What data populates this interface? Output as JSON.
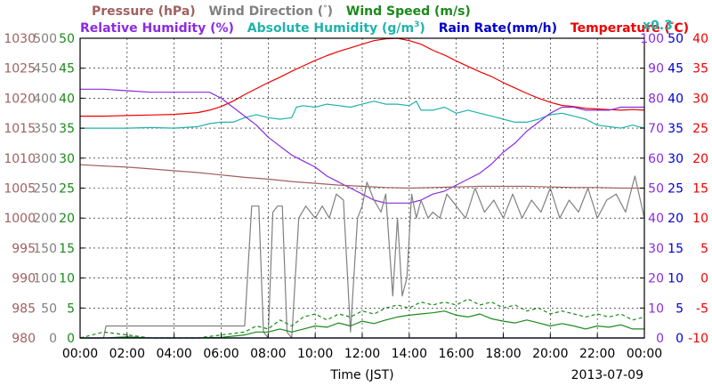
{
  "chart_data": {
    "type": "line",
    "date_label": "2013-07-09",
    "xlabel": "Time (JST)",
    "x_ticks": [
      "00:00",
      "02:00",
      "04:00",
      "06:00",
      "08:00",
      "10:00",
      "12:00",
      "14:00",
      "16:00",
      "18:00",
      "20:00",
      "22:00",
      "00:00"
    ],
    "legend": {
      "row1": [
        {
          "name": "Pressure (hPa)",
          "color": "#a06060"
        },
        {
          "name": "Wind Direction (",
          "color": "#808080",
          "degree": "°",
          "close": ")"
        },
        {
          "name": "Wind Speed (m/s)",
          "color": "#1a8a1a"
        }
      ],
      "row2": [
        {
          "name": "Relative Humidity (%)",
          "color": "#8a2be2"
        },
        {
          "name": "Absolute Humidity (g/m",
          "color": "#20b2aa",
          "sup": "3",
          "close": ")"
        },
        {
          "name": "Rain Rate(mm/h)",
          "color": "#0000cc"
        },
        {
          "name": "Temperature (",
          "color": "#ee0000",
          "degree": "°",
          "close": "C)"
        },
        {
          "name": "x0.3",
          "color": "#20b2aa"
        }
      ]
    },
    "axes": {
      "pressure": {
        "color": "#a06060",
        "labels": [
          "980",
          "985",
          "990",
          "995",
          "1000",
          "1005",
          "1010",
          "1015",
          "1020",
          "1025",
          "1030"
        ],
        "range": [
          980,
          1030
        ]
      },
      "wind_direction": {
        "color": "#808080",
        "labels": [
          "0",
          "50",
          "100",
          "150",
          "200",
          "250",
          "300",
          "350",
          "400",
          "450",
          "500"
        ],
        "range": [
          0,
          500
        ]
      },
      "wind_speed": {
        "color": "#1a8a1a",
        "labels": [
          "0",
          "5",
          "10",
          "15",
          "20",
          "25",
          "30",
          "35",
          "40",
          "45",
          "50"
        ],
        "range": [
          0,
          50
        ]
      },
      "humidity": {
        "color": "#8a2be2",
        "labels": [
          "0",
          "10",
          "20",
          "30",
          "40",
          "50",
          "60",
          "70",
          "80",
          "90",
          "100"
        ],
        "range": [
          0,
          100
        ]
      },
      "rain_rate": {
        "color": "#0000cc",
        "labels": [
          "0",
          "5",
          "10",
          "15",
          "20",
          "25",
          "30",
          "35",
          "40",
          "45",
          "50"
        ],
        "range": [
          0,
          50
        ]
      },
      "temperature": {
        "color": "#ee0000",
        "labels": [
          "-10",
          "-5",
          "0",
          "5",
          "10",
          "15",
          "20",
          "25",
          "30",
          "35",
          "40"
        ],
        "range": [
          -10,
          40
        ]
      }
    },
    "grid": true,
    "series": [
      {
        "color": "#ee0000",
        "axis": "temperature",
        "x": [
          0,
          1,
          2,
          3,
          4,
          5,
          5.5,
          6,
          6.5,
          7,
          7.5,
          8,
          8.5,
          9,
          9.5,
          10,
          10.5,
          11,
          11.5,
          12,
          12.5,
          13,
          13.5,
          14,
          14.5,
          15,
          15.5,
          16,
          16.5,
          17,
          17.5,
          18,
          18.5,
          19,
          19.5,
          20,
          20.5,
          21,
          21.5,
          22,
          22.5,
          23,
          23.5,
          24
        ],
        "y": [
          27,
          27,
          27.1,
          27.2,
          27.3,
          27.6,
          28,
          28.6,
          29.5,
          30.6,
          31.6,
          32.6,
          33.5,
          34.5,
          35.4,
          36.3,
          37.1,
          37.8,
          38.4,
          39,
          39.6,
          39.9,
          40,
          39.6,
          39,
          38,
          37.2,
          36.2,
          35.3,
          34.4,
          33.6,
          32.6,
          31.7,
          30.8,
          30,
          29.3,
          28.8,
          28.6,
          28.3,
          28.2,
          28.1,
          28,
          28.1,
          28
        ]
      },
      {
        "color": "#20b2aa",
        "axis": "humidity",
        "x": [
          0,
          1,
          2,
          3,
          4,
          5,
          5.5,
          6,
          6.5,
          7,
          7.5,
          8,
          8.5,
          9,
          9.2,
          9.5,
          10,
          10.5,
          11,
          11.5,
          12,
          12.5,
          13,
          13.3,
          13.5,
          14,
          14.3,
          14.5,
          15,
          15.5,
          16,
          16.5,
          17,
          17.5,
          18,
          18.5,
          19,
          19.5,
          20,
          20.5,
          21,
          21.5,
          22,
          22.5,
          23,
          23.5,
          24
        ],
        "y": [
          70,
          70,
          70,
          70.2,
          70,
          70.5,
          71.5,
          72,
          72,
          73.5,
          74.5,
          73.5,
          73,
          73.5,
          77,
          77.5,
          77,
          78,
          77.5,
          77,
          78,
          79,
          78,
          78,
          78,
          77.5,
          79,
          76,
          76,
          77,
          75,
          76,
          75,
          74,
          73,
          72,
          72,
          73,
          74.5,
          75,
          74,
          73,
          71,
          70.5,
          70,
          71,
          70
        ]
      },
      {
        "color": "#8a2be2",
        "axis": "humidity",
        "x": [
          0,
          1,
          2,
          3,
          4,
          5,
          5.5,
          6,
          6.5,
          7,
          7.5,
          8,
          8.5,
          9,
          9.5,
          10,
          10.5,
          11,
          11.5,
          12,
          12.5,
          13,
          13.5,
          14,
          14.5,
          15,
          15.5,
          16,
          16.5,
          17,
          17.5,
          18,
          18.5,
          19,
          19.5,
          20,
          20.5,
          21,
          21.5,
          22,
          22.5,
          23,
          23.5,
          24
        ],
        "y": [
          83,
          83,
          82.5,
          82,
          82,
          82,
          82,
          80,
          77,
          74,
          71,
          67,
          64,
          61,
          59,
          57,
          54,
          52,
          50,
          48,
          46,
          45,
          45,
          45,
          46,
          48,
          49,
          51,
          53,
          55,
          58,
          62,
          65,
          69,
          72,
          75,
          77,
          77,
          76,
          76,
          76,
          77,
          77,
          77
        ]
      },
      {
        "color": "#a06060",
        "axis": "pressure",
        "x": [
          0,
          1,
          2,
          3,
          4,
          5,
          6,
          7,
          8,
          9,
          10,
          11,
          12,
          13,
          14,
          15,
          16,
          17,
          18,
          19,
          20,
          21,
          22,
          23,
          24
        ],
        "y": [
          1008.9,
          1008.7,
          1008.5,
          1008.2,
          1007.9,
          1007.6,
          1007.2,
          1006.8,
          1006.5,
          1006.1,
          1005.8,
          1005.5,
          1005.3,
          1005.1,
          1005,
          1005.1,
          1005.2,
          1005.3,
          1005.3,
          1005.3,
          1005.2,
          1005.1,
          1005.1,
          1005,
          1005
        ]
      },
      {
        "color": "#808080",
        "axis": "wind_direction",
        "x": [
          0,
          1,
          1.1,
          6.9,
          7,
          7.3,
          7.6,
          7.8,
          8,
          8.2,
          8.4,
          8.6,
          8.8,
          9,
          9.3,
          9.6,
          10,
          10.3,
          10.6,
          10.9,
          11.2,
          11.5,
          11.8,
          12,
          12.2,
          12.5,
          12.8,
          13,
          13.3,
          13.5,
          13.7,
          13.9,
          14.1,
          14.3,
          14.5,
          14.8,
          15,
          15.3,
          15.6,
          16,
          16.4,
          16.8,
          17.2,
          17.6,
          18,
          18.4,
          18.8,
          19.2,
          19.6,
          20,
          20.4,
          20.8,
          21.2,
          21.6,
          22,
          22.4,
          22.8,
          23.2,
          23.6,
          24
        ],
        "y": [
          0,
          0,
          20,
          20,
          20,
          220,
          220,
          10,
          0,
          210,
          220,
          220,
          10,
          0,
          200,
          220,
          200,
          220,
          200,
          240,
          230,
          10,
          200,
          220,
          260,
          230,
          210,
          240,
          70,
          200,
          70,
          100,
          240,
          200,
          230,
          200,
          210,
          200,
          240,
          220,
          200,
          250,
          210,
          230,
          200,
          240,
          200,
          230,
          210,
          250,
          200,
          230,
          210,
          250,
          200,
          230,
          240,
          210,
          270,
          200
        ]
      },
      {
        "color": "#1a8a1a",
        "axis": "wind_speed",
        "x": [
          0,
          1,
          2,
          3,
          4,
          5,
          6,
          7,
          7.5,
          8,
          8.5,
          9,
          9.5,
          10,
          10.5,
          11,
          11.5,
          12,
          12.5,
          13,
          13.5,
          14,
          14.5,
          15,
          15.5,
          16,
          16.5,
          17,
          17.5,
          18,
          18.5,
          19,
          19.5,
          20,
          20.5,
          21,
          21.5,
          22,
          22.5,
          23,
          23.5,
          24
        ],
        "y": [
          0,
          0,
          0.2,
          0,
          0,
          0,
          0.1,
          0.5,
          1,
          1,
          1.5,
          1,
          1.5,
          2,
          1.8,
          2.5,
          2,
          2.8,
          2.4,
          3,
          3.5,
          3.8,
          4,
          4.2,
          4.5,
          3.8,
          3.5,
          4,
          3.2,
          2.8,
          2.5,
          3,
          2.5,
          2,
          2.4,
          2,
          1.5,
          2,
          1.8,
          2.2,
          1.5,
          1.5
        ]
      },
      {
        "color": "#1a8a1a",
        "axis": "wind_speed",
        "dashed": true,
        "x": [
          0,
          1,
          2,
          3,
          4,
          5,
          6,
          7,
          7.5,
          8,
          8.5,
          9,
          9.5,
          10,
          10.5,
          11,
          11.5,
          12,
          12.5,
          13,
          13.5,
          14,
          14.5,
          15,
          15.5,
          16,
          16.5,
          17,
          17.5,
          18,
          18.5,
          19,
          19.5,
          20,
          20.5,
          21,
          21.5,
          22,
          22.5,
          23,
          23.5,
          24
        ],
        "y": [
          0,
          1,
          0.5,
          0,
          0,
          0,
          0.5,
          1,
          2,
          1.5,
          3,
          2,
          3.5,
          4,
          3,
          4,
          3.5,
          4.5,
          4,
          5,
          5.5,
          5,
          6,
          5.5,
          6,
          5.5,
          6.5,
          5.5,
          6,
          5,
          5.5,
          4.5,
          5,
          4,
          4.5,
          4,
          3.5,
          4,
          3.5,
          4,
          3,
          3.5
        ]
      },
      {
        "color": "#0000cc",
        "axis": "rain_rate",
        "x": [
          0,
          24
        ],
        "y": [
          0,
          0
        ]
      }
    ]
  }
}
